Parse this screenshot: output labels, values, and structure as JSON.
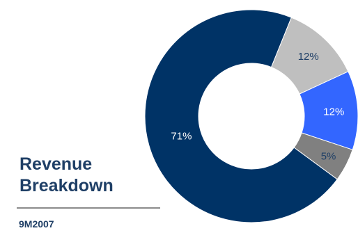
{
  "title_lines": [
    "Revenue",
    "Breakdown"
  ],
  "period": "9M2007",
  "chart_data": {
    "type": "pie",
    "title": "Revenue Breakdown",
    "subtitle": "9M2007",
    "slices": [
      {
        "label": "12%",
        "value": 12,
        "color": "#BFBFBF",
        "text_color": "#1F3F66"
      },
      {
        "label": "12%",
        "value": 12,
        "color": "#3366FF",
        "text_color": "#ffffff"
      },
      {
        "label": "5%",
        "value": 5,
        "color": "#808080",
        "text_color": "#1F3F66"
      },
      {
        "label": "71%",
        "value": 71,
        "color": "#003366",
        "text_color": "#ffffff"
      }
    ],
    "legend": "none",
    "style": "donut"
  }
}
